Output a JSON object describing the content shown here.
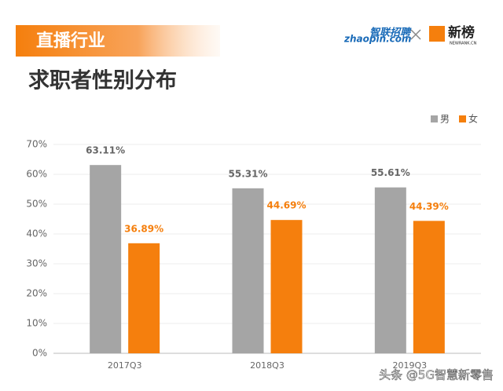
{
  "header": {
    "section": "直播行业",
    "logo_zhaopin": "智联招聘",
    "logo_zhaopin_url": "zhaopin.com",
    "logo_newrank": "新榜",
    "logo_newrank_url": "NEWRANK.CN"
  },
  "watermark": "头条 @5G智慧新零售",
  "chart_data": {
    "type": "bar",
    "title": "求职者性别分布",
    "categories": [
      "2017Q3",
      "2018Q3",
      "2019Q3"
    ],
    "series": [
      {
        "name": "男",
        "color": "#a5a5a5",
        "values": [
          63.11,
          55.31,
          55.61
        ],
        "value_labels": [
          "63.11%",
          "55.31%",
          "55.61%"
        ]
      },
      {
        "name": "女",
        "color": "#f57f0d",
        "values": [
          36.89,
          44.69,
          44.39
        ],
        "value_labels": [
          "36.89%",
          "44.69%",
          "44.39%"
        ]
      }
    ],
    "ylim": [
      0,
      70
    ],
    "yticks": [
      {
        "value": 0,
        "label": "0%"
      },
      {
        "value": 10,
        "label": "10%"
      },
      {
        "value": 20,
        "label": "20%"
      },
      {
        "value": 30,
        "label": "30%"
      },
      {
        "value": 40,
        "label": "40%"
      },
      {
        "value": 50,
        "label": "50%"
      },
      {
        "value": 60,
        "label": "60%"
      },
      {
        "value": 70,
        "label": "70%"
      }
    ],
    "grid": true,
    "legend": "top-right"
  }
}
